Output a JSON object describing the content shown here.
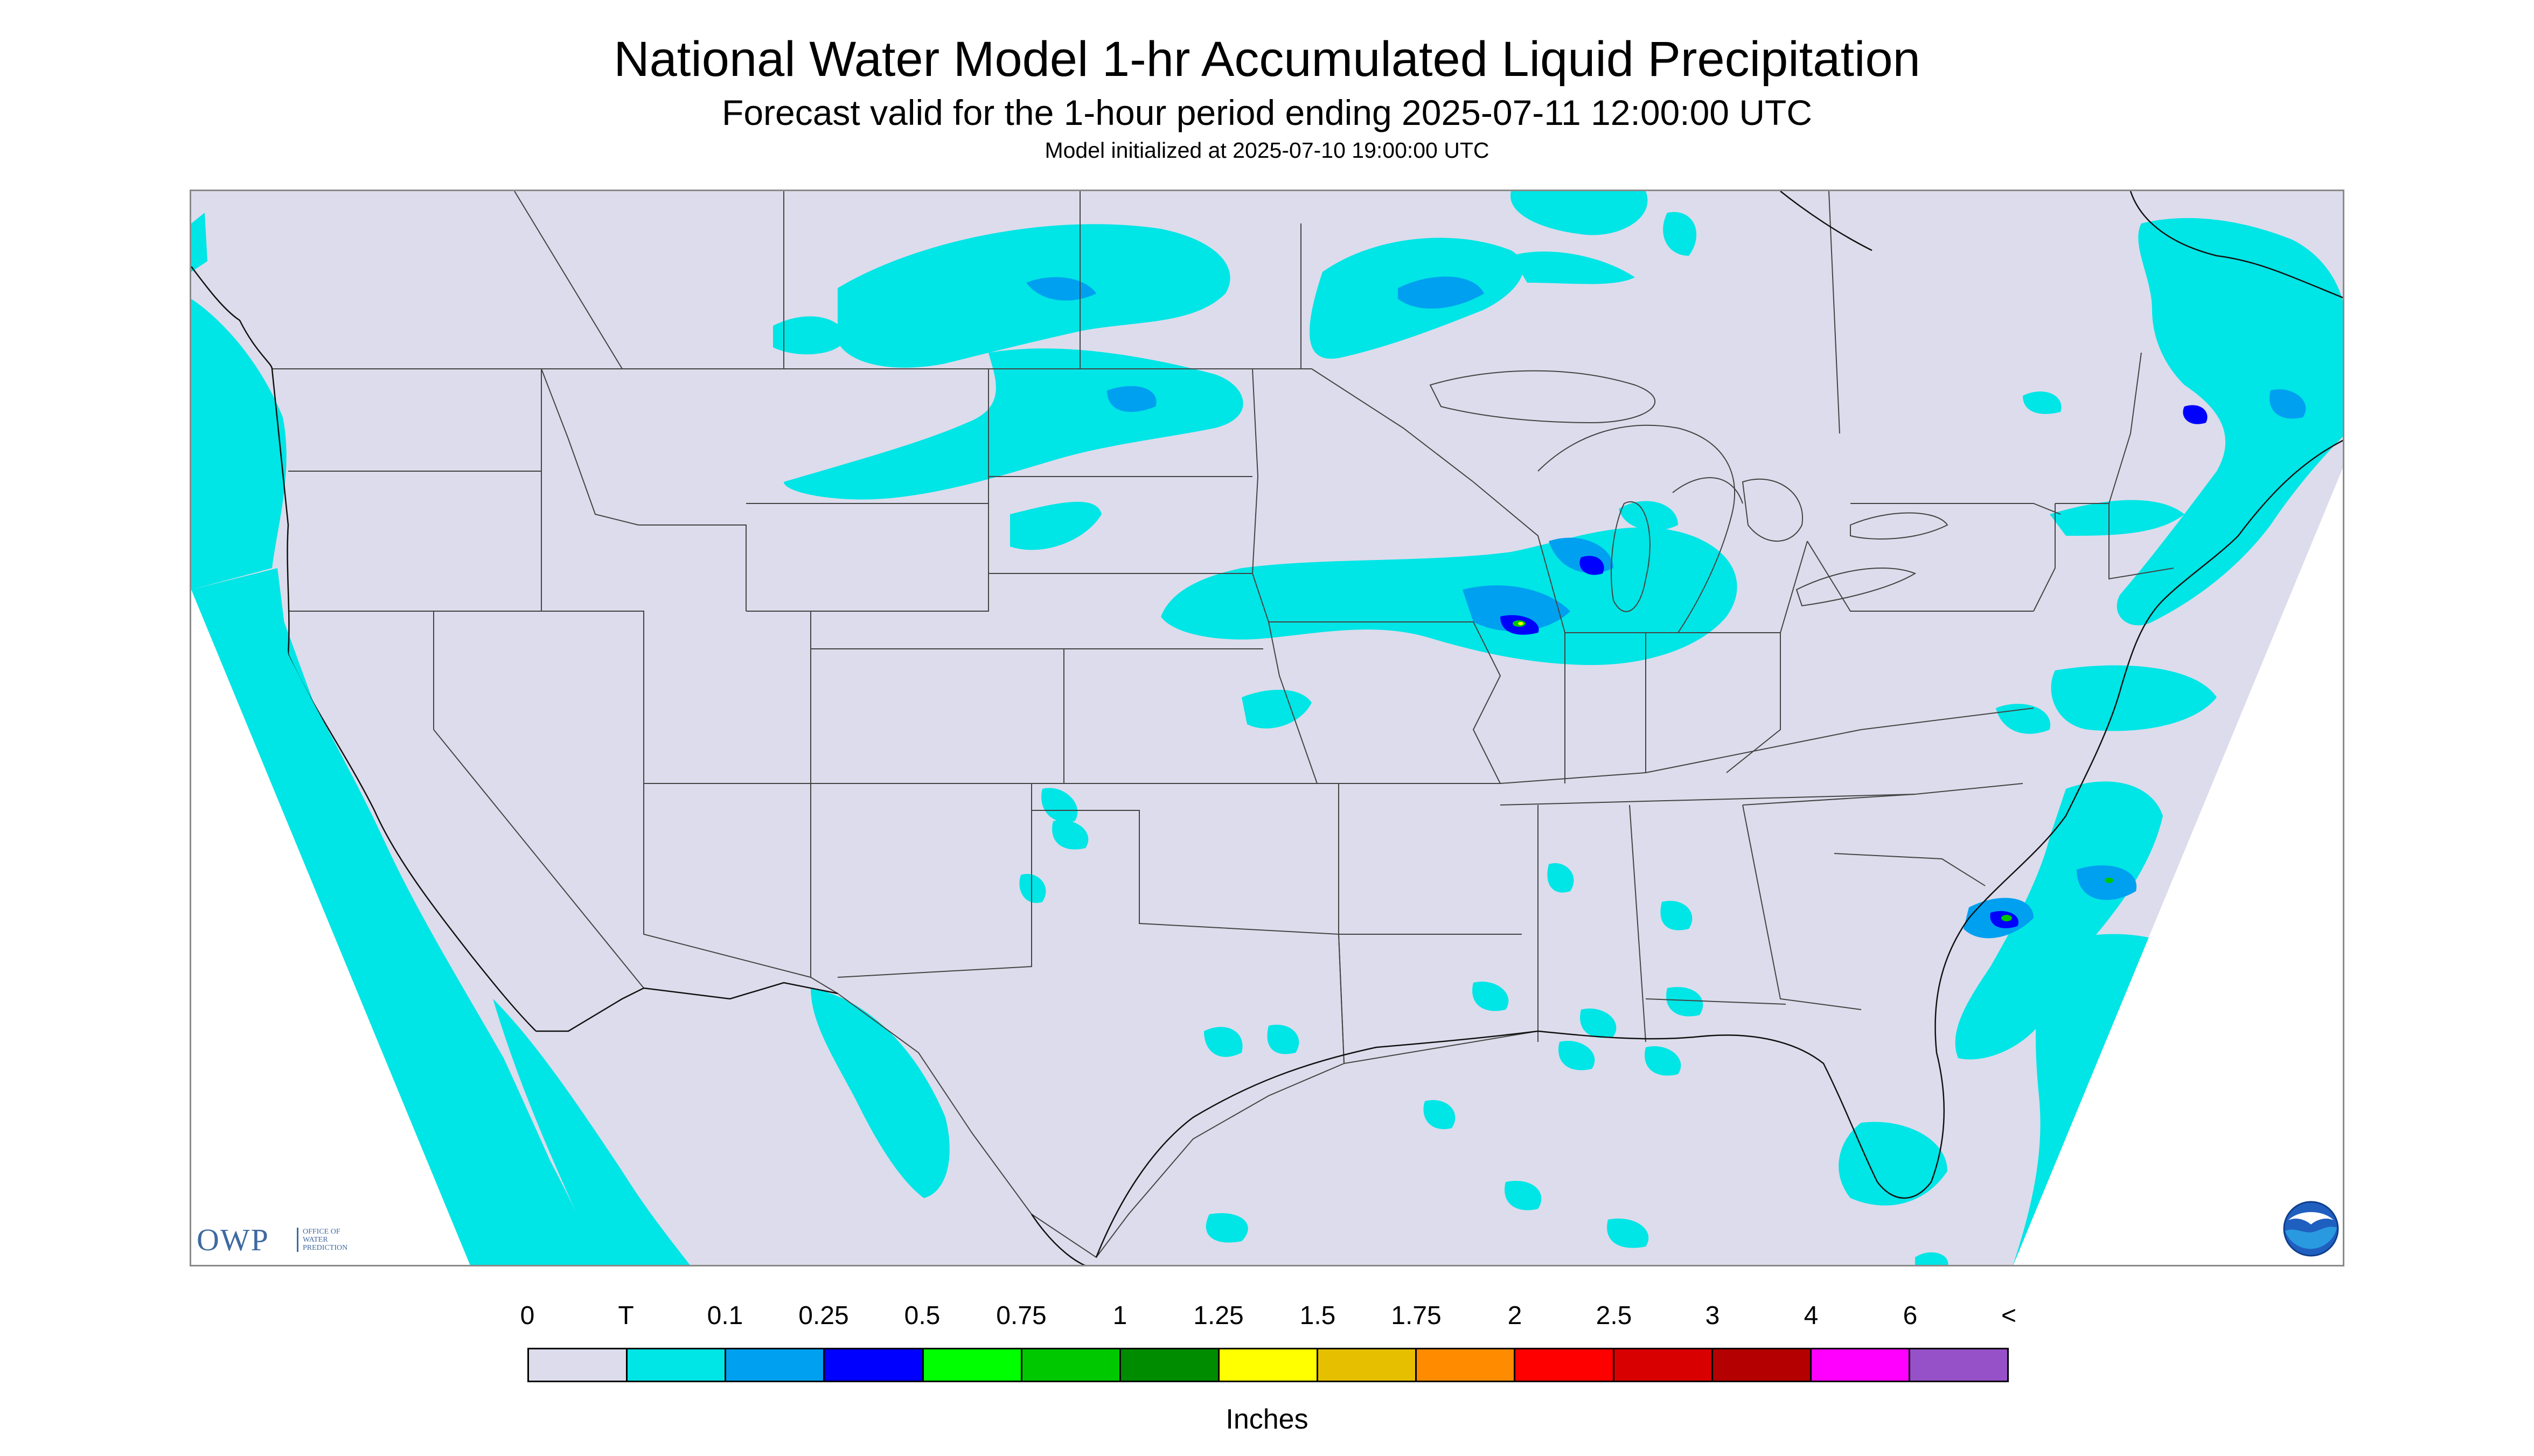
{
  "header": {
    "title": "National Water Model 1-hr Accumulated Liquid Precipitation",
    "subtitle": "Forecast valid for the 1-hour period ending 2025-07-11 12:00:00 UTC",
    "init_line": "Model initialized at 2025-07-10 19:00:00 UTC"
  },
  "logos": {
    "owp_big": "OWP",
    "owp_small": [
      "OFFICE OF",
      "WATER",
      "PREDICTION"
    ],
    "noaa": "NOAA"
  },
  "map": {
    "background_color": "#dcdcec",
    "outside_domain_color": "#ffffff",
    "precip_colors": {
      "trace": "#00e5e5",
      "light": "#00a0f0",
      "moderate": "#0000ff",
      "green": "#00c800",
      "yellow": "#ffff00"
    }
  },
  "legend": {
    "labels": [
      "0",
      "T",
      "0.1",
      "0.25",
      "0.5",
      "0.75",
      "1",
      "1.25",
      "1.5",
      "1.75",
      "2",
      "2.5",
      "3",
      "4",
      "6",
      "<"
    ],
    "colors": [
      "#dcdcec",
      "#00e5e5",
      "#00a0f0",
      "#0000ff",
      "#00ff00",
      "#00c800",
      "#008c00",
      "#ffff00",
      "#e6c000",
      "#ff8c00",
      "#ff0000",
      "#d80000",
      "#b40000",
      "#ff00ff",
      "#9650c8"
    ],
    "units": "Inches"
  }
}
